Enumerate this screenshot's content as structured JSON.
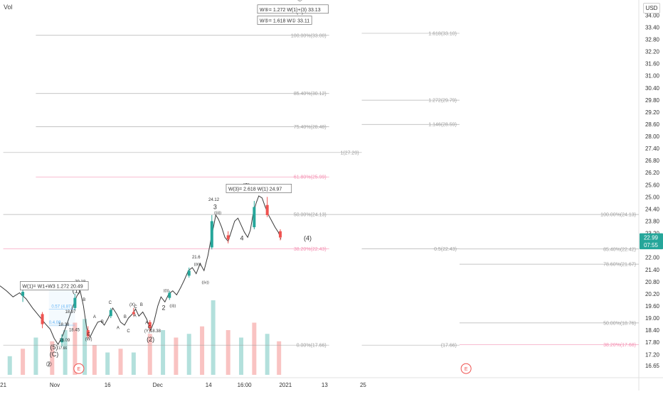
{
  "indicator_label": "Vol",
  "currency_label": "USD",
  "colors": {
    "up": "#26a69a",
    "down": "#ef5350",
    "fib_grey": "#9e9e9e",
    "fib_red": "#f48fb1",
    "fib_blue": "#64b5f6",
    "text": "#333333"
  },
  "price_badges": [
    {
      "text": "22.99",
      "value": 22.99,
      "color": "#26a69a"
    },
    {
      "text": "07:55",
      "value": 22.62,
      "color": "#26a69a"
    }
  ],
  "annotations": {
    "boxes": [
      {
        "id": "box-w5-1272",
        "text": "W⑤= 1.272 W(1)+(3) 33.13",
        "x": 39,
        "y": 34.3
      },
      {
        "id": "box-w5-1618",
        "text": "W⑤= 1.618 W① 33.11",
        "x": 39,
        "y": 33.75
      },
      {
        "id": "box-w3-2618",
        "text": "W(3)= 2.618 W(1) 24.97",
        "x": 34.2,
        "y": 25.42
      },
      {
        "id": "box-w1-1272",
        "text": "W(1)= W1+W3 1.272 20.49",
        "x": 2.6,
        "y": 20.6
      }
    ],
    "wave_labels": [
      {
        "text": "③",
        "x": 45.5,
        "y": 34.7,
        "size": 10
      },
      {
        "text": "(5)",
        "x": 45.5,
        "y": 34.1,
        "size": 9
      },
      {
        "text": "(3)",
        "x": 37.3,
        "y": 25.45,
        "size": 9
      },
      {
        "text": "24.12",
        "x": 32.3,
        "y": 24.8,
        "size": 6
      },
      {
        "text": "3",
        "x": 32.5,
        "y": 24.4,
        "size": 9
      },
      {
        "text": "((iii))",
        "x": 32.9,
        "y": 24.15,
        "size": 5
      },
      {
        "text": "4",
        "x": 36.6,
        "y": 22.85,
        "size": 9
      },
      {
        "text": "(4)",
        "x": 46.7,
        "y": 22.85,
        "size": 9
      },
      {
        "text": "21.6",
        "x": 29.6,
        "y": 21.95,
        "size": 6
      },
      {
        "text": "((iii))",
        "x": 29.8,
        "y": 21.6,
        "size": 5
      },
      {
        "text": "((iv))",
        "x": 31.0,
        "y": 20.7,
        "size": 5
      },
      {
        "text": "((i))",
        "x": 25.0,
        "y": 20.3,
        "size": 5
      },
      {
        "text": "((ii))",
        "x": 26.0,
        "y": 19.55,
        "size": 5
      },
      {
        "text": "2",
        "x": 24.6,
        "y": 19.4,
        "size": 9
      },
      {
        "text": "(2)",
        "x": 22.6,
        "y": 17.85,
        "size": 9
      },
      {
        "text": "(Y)18.38",
        "x": 22.9,
        "y": 18.3,
        "size": 6
      },
      {
        "text": "(X)",
        "x": 19.8,
        "y": 19.6,
        "size": 6
      },
      {
        "text": "(1)",
        "x": 11.2,
        "y": 20.25,
        "size": 9
      },
      {
        "text": "20.18",
        "x": 11.8,
        "y": 20.75,
        "size": 6
      },
      {
        "text": "B",
        "x": 12.4,
        "y": 19.85,
        "size": 6
      },
      {
        "text": "(5)",
        "x": 7.8,
        "y": 17.45,
        "size": 9
      },
      {
        "text": "(C)",
        "x": 7.8,
        "y": 17.1,
        "size": 9
      },
      {
        "text": "17.66",
        "x": 9.1,
        "y": 17.45,
        "size": 5
      },
      {
        "text": "②",
        "x": 7.0,
        "y": 16.6,
        "size": 10
      },
      {
        "text": "(W)",
        "x": 13.1,
        "y": 17.9,
        "size": 6
      },
      {
        "text": "C",
        "x": 13.1,
        "y": 18.15,
        "size": 6
      },
      {
        "text": "18.97",
        "x": 10.3,
        "y": 19.25,
        "size": 6
      },
      {
        "text": "18.38",
        "x": 9.3,
        "y": 18.62,
        "size": 6
      },
      {
        "text": "18.45",
        "x": 10.9,
        "y": 18.35,
        "size": 6
      },
      {
        "text": "18.09",
        "x": 9.4,
        "y": 17.85,
        "size": 6
      },
      {
        "text": "A",
        "x": 14.0,
        "y": 19.0,
        "size": 6
      },
      {
        "text": "B",
        "x": 15.2,
        "y": 18.75,
        "size": 6
      },
      {
        "text": "C",
        "x": 16.4,
        "y": 19.7,
        "size": 6
      },
      {
        "text": "A",
        "x": 17.6,
        "y": 18.45,
        "size": 6
      },
      {
        "text": "B",
        "x": 18.7,
        "y": 19.0,
        "size": 6
      },
      {
        "text": "C",
        "x": 19.2,
        "y": 18.3,
        "size": 6
      },
      {
        "text": "A",
        "x": 20.2,
        "y": 19.05,
        "size": 6
      },
      {
        "text": "C",
        "x": 20.3,
        "y": 19.5,
        "size": 6
      },
      {
        "text": "B",
        "x": 21.2,
        "y": 19.6,
        "size": 6
      },
      {
        "text": "A",
        "x": 22.0,
        "y": 18.7,
        "size": 6
      },
      {
        "text": "C",
        "x": 22.4,
        "y": 18.5,
        "size": 6
      }
    ],
    "fib_blue_labels": [
      {
        "text": "2.52 (14.26)",
        "x": 7.2,
        "y": 20.5
      },
      {
        "text": "0.57 (4.87)",
        "x": 7.4,
        "y": 19.52
      },
      {
        "text": "0.4.08",
        "x": 7.0,
        "y": 18.72
      }
    ],
    "event_markers": [
      {
        "x": 11.6,
        "y": 16.5
      },
      {
        "x": 71.0,
        "y": 16.5
      }
    ]
  },
  "chart_data": {
    "type": "candlestick",
    "ylim": [
      16.05,
      34.75
    ],
    "xlim": [
      -0.5,
      97.5
    ],
    "y_ticks": [
      "16.15",
      "16.65",
      "17.20",
      "17.80",
      "18.40",
      "19.00",
      "19.60",
      "20.20",
      "20.80",
      "21.40",
      "22.00",
      "22.60",
      "23.20",
      "23.80",
      "24.40",
      "25.00",
      "25.60",
      "26.20",
      "26.80",
      "27.40",
      "28.00",
      "28.60",
      "29.20",
      "29.80",
      "30.40",
      "31.00",
      "31.60",
      "32.20",
      "32.80",
      "33.40",
      "34.00"
    ],
    "x_ticks": [
      {
        "label": "21",
        "x": 0
      },
      {
        "label": "Nov",
        "x": 7.9
      },
      {
        "label": "16",
        "x": 16.0
      },
      {
        "label": "Dec",
        "x": 23.7
      },
      {
        "label": "14",
        "x": 31.5
      },
      {
        "label": "16:00",
        "x": 37.0
      },
      {
        "label": "2021",
        "x": 43.3
      },
      {
        "label": "13",
        "x": 49.3
      },
      {
        "label": "25",
        "x": 55.2
      }
    ],
    "fib_levels": [
      {
        "text": "100.00%(33.00)",
        "price": 33.0,
        "x_start": 5.0,
        "x_end": 50.0,
        "color": "grey"
      },
      {
        "text": "1.618(33.10)",
        "price": 33.1,
        "x_start": 55.0,
        "x_end": 70.0,
        "color": "grey"
      },
      {
        "text": "85.40%(30.12)",
        "price": 30.12,
        "x_start": 5.0,
        "x_end": 50.0,
        "color": "grey"
      },
      {
        "text": "1.272(29.79)",
        "price": 29.79,
        "x_start": 55.0,
        "x_end": 70.0,
        "color": "grey"
      },
      {
        "text": "75.40%(28.48)",
        "price": 28.48,
        "x_start": 5.0,
        "x_end": 50.0,
        "color": "grey"
      },
      {
        "text": "1.146(28.59)",
        "price": 28.59,
        "x_start": 55.0,
        "x_end": 70.0,
        "color": "grey"
      },
      {
        "text": "1(27.20)",
        "price": 27.2,
        "x_start": 0.0,
        "x_end": 55.0,
        "color": "grey"
      },
      {
        "text": "61.80%(25.99)",
        "price": 25.99,
        "x_start": 5.0,
        "x_end": 50.0,
        "color": "red"
      },
      {
        "text": "50.00%(24.13)",
        "price": 24.13,
        "x_start": 0.0,
        "x_end": 50.0,
        "color": "grey"
      },
      {
        "text": "100.00%(24.13)",
        "price": 24.13,
        "x_start": 50.0,
        "x_end": 97.5,
        "color": "grey"
      },
      {
        "text": "38.20%(22.43)",
        "price": 22.43,
        "x_start": 0.0,
        "x_end": 50.0,
        "color": "red"
      },
      {
        "text": "0.5(22.43)",
        "price": 22.43,
        "x_start": 55.0,
        "x_end": 70.0,
        "color": "grey"
      },
      {
        "text": "85.40%(22.42)",
        "price": 22.42,
        "x_start": 70.0,
        "x_end": 97.5,
        "color": "grey"
      },
      {
        "text": "78.60%(21.67)",
        "price": 21.67,
        "x_start": 70.0,
        "x_end": 97.5,
        "color": "grey"
      },
      {
        "text": "50.00%(18.76)",
        "price": 18.76,
        "x_start": 70.0,
        "x_end": 97.5,
        "color": "grey"
      },
      {
        "text": "0.00%(17.66)",
        "price": 17.66,
        "x_start": 0.0,
        "x_end": 50.0,
        "color": "grey"
      },
      {
        "text": "(17.66)",
        "price": 17.66,
        "x_start": 55.0,
        "x_end": 70.0,
        "color": "grey"
      },
      {
        "text": "38.20%(17.68)",
        "price": 17.68,
        "x_start": 70.0,
        "x_end": 97.5,
        "color": "red"
      }
    ],
    "price_path": [
      [
        -0.5,
        20.6
      ],
      [
        0.5,
        20.35
      ],
      [
        1.5,
        20.05
      ],
      [
        2.5,
        20.25
      ],
      [
        3.5,
        19.95
      ],
      [
        4.5,
        19.5
      ],
      [
        5.5,
        19.1
      ],
      [
        6.5,
        18.7
      ],
      [
        7.2,
        18.45
      ],
      [
        7.8,
        18.0
      ],
      [
        8.4,
        17.7
      ],
      [
        9.0,
        18.05
      ],
      [
        9.6,
        18.55
      ],
      [
        10.2,
        19.1
      ],
      [
        10.7,
        19.6
      ],
      [
        11.3,
        20.1
      ],
      [
        11.8,
        20.35
      ],
      [
        12.3,
        19.6
      ],
      [
        12.8,
        18.5
      ],
      [
        13.3,
        18.05
      ],
      [
        13.9,
        18.45
      ],
      [
        14.5,
        18.8
      ],
      [
        15.0,
        18.85
      ],
      [
        15.5,
        18.65
      ],
      [
        16.1,
        19.0
      ],
      [
        16.8,
        19.5
      ],
      [
        17.4,
        19.2
      ],
      [
        18.0,
        18.8
      ],
      [
        18.6,
        18.65
      ],
      [
        19.2,
        19.0
      ],
      [
        19.8,
        19.2
      ],
      [
        20.3,
        19.45
      ],
      [
        20.8,
        19.1
      ],
      [
        21.4,
        19.3
      ],
      [
        22.0,
        18.95
      ],
      [
        22.6,
        18.4
      ],
      [
        23.1,
        18.8
      ],
      [
        23.7,
        19.6
      ],
      [
        24.2,
        20.05
      ],
      [
        24.8,
        19.8
      ],
      [
        25.4,
        20.2
      ],
      [
        26.0,
        20.35
      ],
      [
        26.6,
        20.15
      ],
      [
        27.2,
        20.5
      ],
      [
        27.8,
        20.9
      ],
      [
        28.4,
        21.35
      ],
      [
        29.0,
        21.5
      ],
      [
        29.6,
        21.2
      ],
      [
        30.2,
        21.7
      ],
      [
        30.8,
        21.35
      ],
      [
        31.4,
        22.1
      ],
      [
        31.8,
        22.8
      ],
      [
        32.3,
        23.6
      ],
      [
        32.6,
        24.1
      ],
      [
        33.0,
        23.9
      ],
      [
        33.5,
        23.5
      ],
      [
        34.0,
        23.0
      ],
      [
        34.5,
        22.8
      ],
      [
        35.0,
        23.3
      ],
      [
        35.5,
        23.8
      ],
      [
        36.0,
        23.95
      ],
      [
        36.5,
        23.6
      ],
      [
        37.0,
        23.25
      ],
      [
        37.5,
        23.0
      ],
      [
        37.9,
        23.35
      ],
      [
        38.3,
        24.1
      ],
      [
        38.8,
        24.7
      ],
      [
        39.2,
        25.05
      ],
      [
        39.7,
        24.95
      ],
      [
        40.2,
        24.5
      ],
      [
        40.7,
        24.1
      ],
      [
        41.2,
        23.8
      ],
      [
        41.7,
        23.5
      ],
      [
        42.2,
        23.25
      ],
      [
        42.6,
        22.9
      ]
    ],
    "candles": [
      {
        "x": 3.0,
        "o": 20.1,
        "h": 20.5,
        "l": 19.8,
        "c": 20.3
      },
      {
        "x": 6.0,
        "o": 19.2,
        "h": 19.3,
        "l": 18.5,
        "c": 18.7
      },
      {
        "x": 9.0,
        "o": 17.8,
        "h": 18.2,
        "l": 17.6,
        "c": 18.0
      },
      {
        "x": 11.0,
        "o": 19.5,
        "h": 20.2,
        "l": 19.4,
        "c": 20.0
      },
      {
        "x": 13.0,
        "o": 18.4,
        "h": 18.6,
        "l": 18.0,
        "c": 18.1
      },
      {
        "x": 16.5,
        "o": 19.1,
        "h": 19.5,
        "l": 19.0,
        "c": 19.4
      },
      {
        "x": 20.0,
        "o": 19.3,
        "h": 19.5,
        "l": 19.1,
        "c": 19.2
      },
      {
        "x": 22.5,
        "o": 18.8,
        "h": 18.9,
        "l": 18.35,
        "c": 18.5
      },
      {
        "x": 25.5,
        "o": 20.0,
        "h": 20.35,
        "l": 19.9,
        "c": 20.25
      },
      {
        "x": 28.5,
        "o": 21.1,
        "h": 21.5,
        "l": 21.0,
        "c": 21.35
      },
      {
        "x": 32.0,
        "o": 22.5,
        "h": 24.1,
        "l": 22.4,
        "c": 23.8
      },
      {
        "x": 34.5,
        "o": 23.1,
        "h": 23.3,
        "l": 22.7,
        "c": 22.9
      },
      {
        "x": 38.5,
        "o": 23.5,
        "h": 24.8,
        "l": 23.4,
        "c": 24.5
      },
      {
        "x": 40.5,
        "o": 24.6,
        "h": 25.0,
        "l": 24.0,
        "c": 24.1
      },
      {
        "x": 42.5,
        "o": 23.3,
        "h": 23.4,
        "l": 22.85,
        "c": 22.99
      }
    ],
    "volume": [
      {
        "x": 1.0,
        "v": 0.25
      },
      {
        "x": 3.0,
        "v": 0.35
      },
      {
        "x": 5.0,
        "v": 0.5
      },
      {
        "x": 7.5,
        "v": 0.45
      },
      {
        "x": 9.5,
        "v": 0.6
      },
      {
        "x": 11.0,
        "v": 0.7
      },
      {
        "x": 12.5,
        "v": 0.75
      },
      {
        "x": 14.0,
        "v": 0.4
      },
      {
        "x": 16.0,
        "v": 0.3
      },
      {
        "x": 18.0,
        "v": 0.35
      },
      {
        "x": 20.0,
        "v": 0.3
      },
      {
        "x": 22.5,
        "v": 0.55
      },
      {
        "x": 24.5,
        "v": 0.6
      },
      {
        "x": 26.5,
        "v": 0.5
      },
      {
        "x": 28.5,
        "v": 0.55
      },
      {
        "x": 30.5,
        "v": 0.65
      },
      {
        "x": 32.2,
        "v": 1.0
      },
      {
        "x": 34.5,
        "v": 0.6
      },
      {
        "x": 36.5,
        "v": 0.5
      },
      {
        "x": 38.5,
        "v": 0.7
      },
      {
        "x": 40.5,
        "v": 0.55
      },
      {
        "x": 42.3,
        "v": 0.45
      }
    ]
  }
}
